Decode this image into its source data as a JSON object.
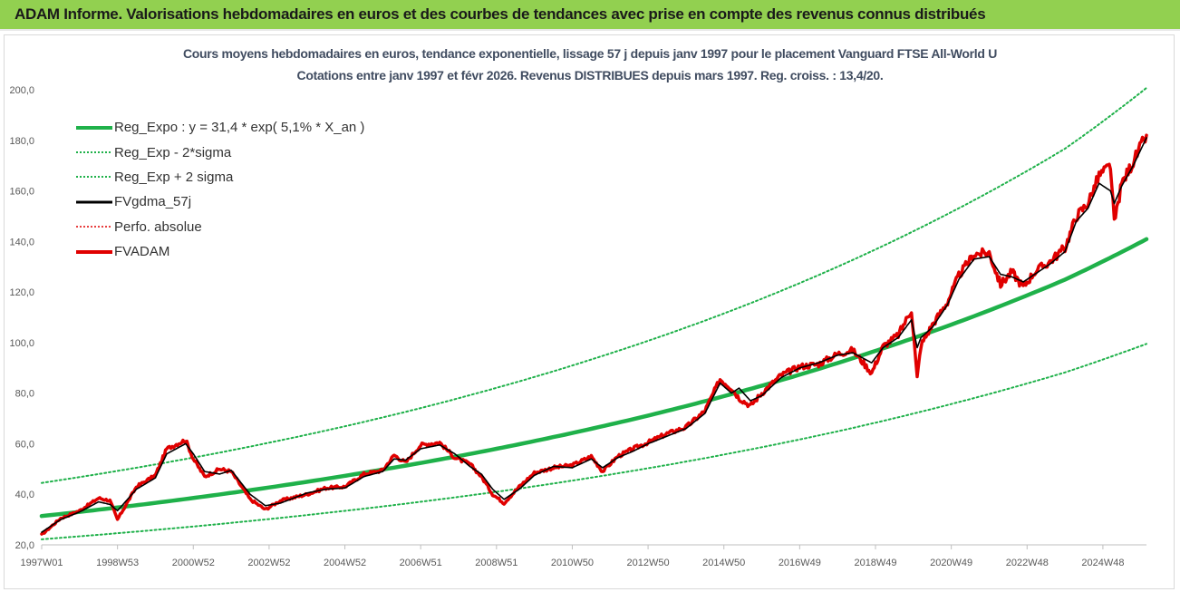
{
  "header": {
    "title": "ADAM Informe. Valorisations hebdomadaires en euros et des courbes de tendances avec prise en compte des revenus connus distribués"
  },
  "chart_data": {
    "type": "line",
    "title": "Cours moyens hebdomadaires en euros, tendance exponentielle, lissage 57 j depuis janv 1997 pour le placement Vanguard FTSE All-World U",
    "subtitle": "Cotations entre janv 1997 et févr 2026. Revenus DISTRIBUES depuis mars 1997. Reg. croiss. : 13,4/20.",
    "xlabel": "",
    "ylabel": "",
    "ylim": [
      20,
      200
    ],
    "xlim": [
      1997.0,
      2026.15
    ],
    "yticks": [
      "20,0",
      "40,0",
      "60,0",
      "80,0",
      "100,0",
      "120,0",
      "140,0",
      "160,0",
      "180,0",
      "200,0"
    ],
    "xticks": [
      {
        "label": "1997W01",
        "x": 1997.0
      },
      {
        "label": "1998W53",
        "x": 1999.0
      },
      {
        "label": "2000W52",
        "x": 2001.0
      },
      {
        "label": "2002W52",
        "x": 2003.0
      },
      {
        "label": "2004W52",
        "x": 2005.0
      },
      {
        "label": "2006W51",
        "x": 2007.0
      },
      {
        "label": "2008W51",
        "x": 2009.0
      },
      {
        "label": "2010W50",
        "x": 2011.0
      },
      {
        "label": "2012W50",
        "x": 2013.0
      },
      {
        "label": "2014W50",
        "x": 2015.0
      },
      {
        "label": "2016W49",
        "x": 2017.0
      },
      {
        "label": "2018W49",
        "x": 2019.0
      },
      {
        "label": "2020W49",
        "x": 2021.0
      },
      {
        "label": "2022W48",
        "x": 2023.0
      },
      {
        "label": "2024W48",
        "x": 2025.0
      }
    ],
    "grid": false,
    "legend_position": "top-left",
    "legend": [
      {
        "name": "Reg_Expo : y = 31,4 * exp( 5,1% *  X_an )",
        "color": "#1fb14a",
        "style": "solid-thick"
      },
      {
        "name": "Reg_Exp - 2*sigma",
        "color": "#1fb14a",
        "style": "dotted"
      },
      {
        "name": "Reg_Exp + 2 sigma",
        "color": "#1fb14a",
        "style": "dotted"
      },
      {
        "name": "FVgdma_57j",
        "color": "#000000",
        "style": "solid"
      },
      {
        "name": "Perfo. absolue",
        "color": "#e00000",
        "style": "dotted"
      },
      {
        "name": "FVADAM",
        "color": "#e00000",
        "style": "solid-thick"
      }
    ],
    "series": [
      {
        "name": "Reg_Expo : y = 31,4 * exp( 5,1% *  X_an )",
        "x": [
          1997,
          2000,
          2003,
          2006,
          2009,
          2012,
          2015,
          2018,
          2021,
          2024,
          2026.15
        ],
        "values": [
          31.4,
          36.6,
          42.7,
          49.8,
          58.0,
          67.6,
          78.8,
          91.9,
          107.1,
          124.9,
          140.9
        ]
      },
      {
        "name": "Reg_Exp - 2*sigma",
        "x": [
          1997,
          2000,
          2003,
          2006,
          2009,
          2012,
          2015,
          2018,
          2021,
          2024,
          2026.15
        ],
        "values": [
          22.2,
          25.9,
          30.2,
          35.2,
          41.0,
          47.8,
          55.7,
          64.9,
          75.7,
          88.2,
          99.5
        ]
      },
      {
        "name": "Reg_Exp + 2 sigma",
        "x": [
          1997,
          2000,
          2003,
          2006,
          2009,
          2012,
          2015,
          2018,
          2021,
          2024,
          2026.15
        ],
        "values": [
          44.5,
          51.8,
          60.4,
          70.4,
          82.1,
          95.7,
          111.5,
          130.0,
          151.6,
          176.7,
          200.7
        ]
      },
      {
        "name": "FVgdma_57j",
        "x": [
          1997.0,
          1997.5,
          1998.0,
          1998.5,
          1998.8,
          1999.0,
          1999.5,
          2000.0,
          2000.3,
          2000.8,
          2001.0,
          2001.3,
          2001.7,
          2002.0,
          2002.5,
          2002.9,
          2003.3,
          2004.0,
          2004.5,
          2005.0,
          2005.5,
          2006.0,
          2006.3,
          2006.6,
          2007.0,
          2007.5,
          2007.9,
          2008.3,
          2008.6,
          2008.9,
          2009.2,
          2009.6,
          2010.0,
          2010.5,
          2011.0,
          2011.5,
          2011.8,
          2012.2,
          2012.6,
          2013.0,
          2013.5,
          2014.0,
          2014.5,
          2014.9,
          2015.2,
          2015.4,
          2015.7,
          2016.0,
          2016.5,
          2017.0,
          2017.5,
          2018.0,
          2018.4,
          2018.9,
          2019.2,
          2019.6,
          2019.95,
          2020.1,
          2020.2,
          2020.5,
          2020.9,
          2021.2,
          2021.6,
          2022.0,
          2022.3,
          2022.6,
          2022.9,
          2023.2,
          2023.6,
          2024.0,
          2024.3,
          2024.6,
          2024.9,
          2025.2,
          2025.3,
          2025.5,
          2025.8,
          2026.15
        ],
        "values": [
          25.0,
          30.0,
          33.0,
          37.0,
          36.0,
          33.5,
          42.0,
          46.5,
          56.0,
          60.0,
          56.0,
          49.0,
          48.0,
          49.5,
          40.0,
          35.5,
          36.5,
          40.5,
          42.0,
          42.5,
          47.0,
          49.0,
          54.0,
          53.5,
          58.0,
          59.5,
          56.0,
          51.0,
          48.0,
          42.0,
          38.0,
          42.0,
          47.5,
          51.0,
          50.5,
          54.0,
          50.5,
          54.5,
          57.0,
          60.0,
          63.0,
          66.0,
          72.0,
          84.0,
          80.0,
          82.0,
          77.0,
          79.0,
          86.0,
          90.0,
          92.0,
          95.0,
          96.0,
          92.0,
          98.0,
          102.0,
          109.0,
          98.0,
          102.0,
          106.0,
          115.0,
          125.0,
          133.0,
          134.0,
          127.0,
          126.0,
          124.0,
          127.0,
          131.0,
          136.0,
          148.0,
          153.0,
          163.0,
          160.0,
          155.0,
          162.0,
          170.0,
          181.0
        ]
      },
      {
        "name": "Perfo. absolue",
        "x": [
          1997.0,
          1997.5,
          1998.0,
          1998.5,
          1998.8,
          1999.0,
          1999.5,
          2000.0,
          2000.3,
          2000.8,
          2001.0,
          2001.3,
          2001.7,
          2002.0,
          2002.5,
          2002.9,
          2003.3,
          2004.0,
          2004.5,
          2005.0,
          2005.5,
          2006.0,
          2006.3,
          2006.6,
          2007.0,
          2007.5,
          2007.9,
          2008.3,
          2008.6,
          2008.9,
          2009.2,
          2009.6,
          2010.0,
          2010.5,
          2011.0,
          2011.5,
          2011.8,
          2012.2,
          2012.6,
          2013.0,
          2013.5,
          2014.0,
          2014.5,
          2014.9,
          2015.2,
          2015.4,
          2015.7,
          2016.0,
          2016.5,
          2017.0,
          2017.5,
          2018.0,
          2018.4,
          2018.9,
          2019.2,
          2019.6,
          2019.95,
          2020.1,
          2020.2,
          2020.5,
          2020.9,
          2021.2,
          2021.6,
          2022.0,
          2022.3,
          2022.6,
          2022.9,
          2023.2,
          2023.6,
          2024.0,
          2024.3,
          2024.6,
          2024.9,
          2025.2,
          2025.3,
          2025.5,
          2025.8,
          2026.15
        ],
        "values": [
          24.0,
          30.5,
          33.5,
          38.5,
          37.5,
          30.0,
          43.0,
          47.5,
          58.0,
          61.5,
          54.0,
          47.0,
          50.0,
          49.0,
          38.0,
          34.0,
          37.5,
          40.0,
          42.5,
          43.0,
          48.0,
          49.5,
          55.5,
          52.5,
          59.5,
          60.5,
          54.5,
          52.0,
          47.0,
          40.0,
          36.5,
          43.0,
          48.5,
          50.5,
          51.5,
          55.0,
          49.0,
          55.0,
          58.0,
          60.5,
          64.0,
          66.5,
          73.0,
          85.5,
          82.0,
          78.0,
          75.0,
          80.0,
          87.0,
          90.5,
          91.5,
          95.5,
          97.0,
          88.0,
          98.5,
          103.0,
          113.0,
          86.0,
          99.0,
          107.0,
          116.0,
          126.5,
          135.0,
          135.5,
          123.0,
          128.0,
          122.0,
          128.0,
          132.0,
          137.5,
          150.0,
          155.0,
          166.0,
          170.0,
          147.0,
          163.0,
          171.5,
          182.0
        ]
      },
      {
        "name": "FVADAM",
        "x": [
          1997.0,
          1997.5,
          1998.0,
          1998.5,
          1998.8,
          1999.0,
          1999.5,
          2000.0,
          2000.3,
          2000.8,
          2001.0,
          2001.3,
          2001.7,
          2002.0,
          2002.5,
          2002.9,
          2003.3,
          2004.0,
          2004.5,
          2005.0,
          2005.5,
          2006.0,
          2006.3,
          2006.6,
          2007.0,
          2007.5,
          2007.9,
          2008.3,
          2008.6,
          2008.9,
          2009.2,
          2009.6,
          2010.0,
          2010.5,
          2011.0,
          2011.5,
          2011.8,
          2012.2,
          2012.6,
          2013.0,
          2013.5,
          2014.0,
          2014.5,
          2014.9,
          2015.2,
          2015.4,
          2015.7,
          2016.0,
          2016.5,
          2017.0,
          2017.5,
          2018.0,
          2018.4,
          2018.9,
          2019.2,
          2019.6,
          2019.95,
          2020.1,
          2020.2,
          2020.5,
          2020.9,
          2021.2,
          2021.6,
          2022.0,
          2022.3,
          2022.6,
          2022.9,
          2023.2,
          2023.6,
          2024.0,
          2024.3,
          2024.6,
          2024.9,
          2025.2,
          2025.3,
          2025.5,
          2025.8,
          2026.15
        ],
        "values": [
          24.0,
          30.5,
          33.5,
          38.5,
          37.5,
          30.0,
          43.0,
          47.5,
          58.0,
          61.5,
          54.0,
          47.0,
          50.0,
          49.0,
          38.0,
          34.0,
          37.5,
          40.0,
          42.5,
          43.0,
          48.0,
          49.5,
          55.5,
          52.5,
          59.5,
          60.5,
          54.5,
          52.0,
          47.0,
          40.0,
          36.5,
          43.0,
          48.5,
          50.5,
          51.5,
          55.0,
          49.0,
          55.0,
          58.0,
          60.5,
          64.0,
          66.5,
          73.0,
          85.5,
          82.0,
          78.0,
          75.0,
          80.0,
          87.0,
          90.5,
          91.5,
          95.5,
          97.0,
          88.0,
          98.5,
          103.0,
          113.0,
          86.0,
          99.0,
          107.0,
          116.0,
          126.5,
          135.0,
          135.5,
          123.0,
          128.0,
          122.0,
          128.0,
          132.0,
          137.5,
          150.0,
          155.0,
          166.0,
          170.0,
          147.0,
          163.0,
          171.5,
          182.0
        ]
      }
    ]
  },
  "colors": {
    "banner": "#92d050",
    "trend": "#1fb14a",
    "smoothed": "#000000",
    "price": "#e00000"
  }
}
